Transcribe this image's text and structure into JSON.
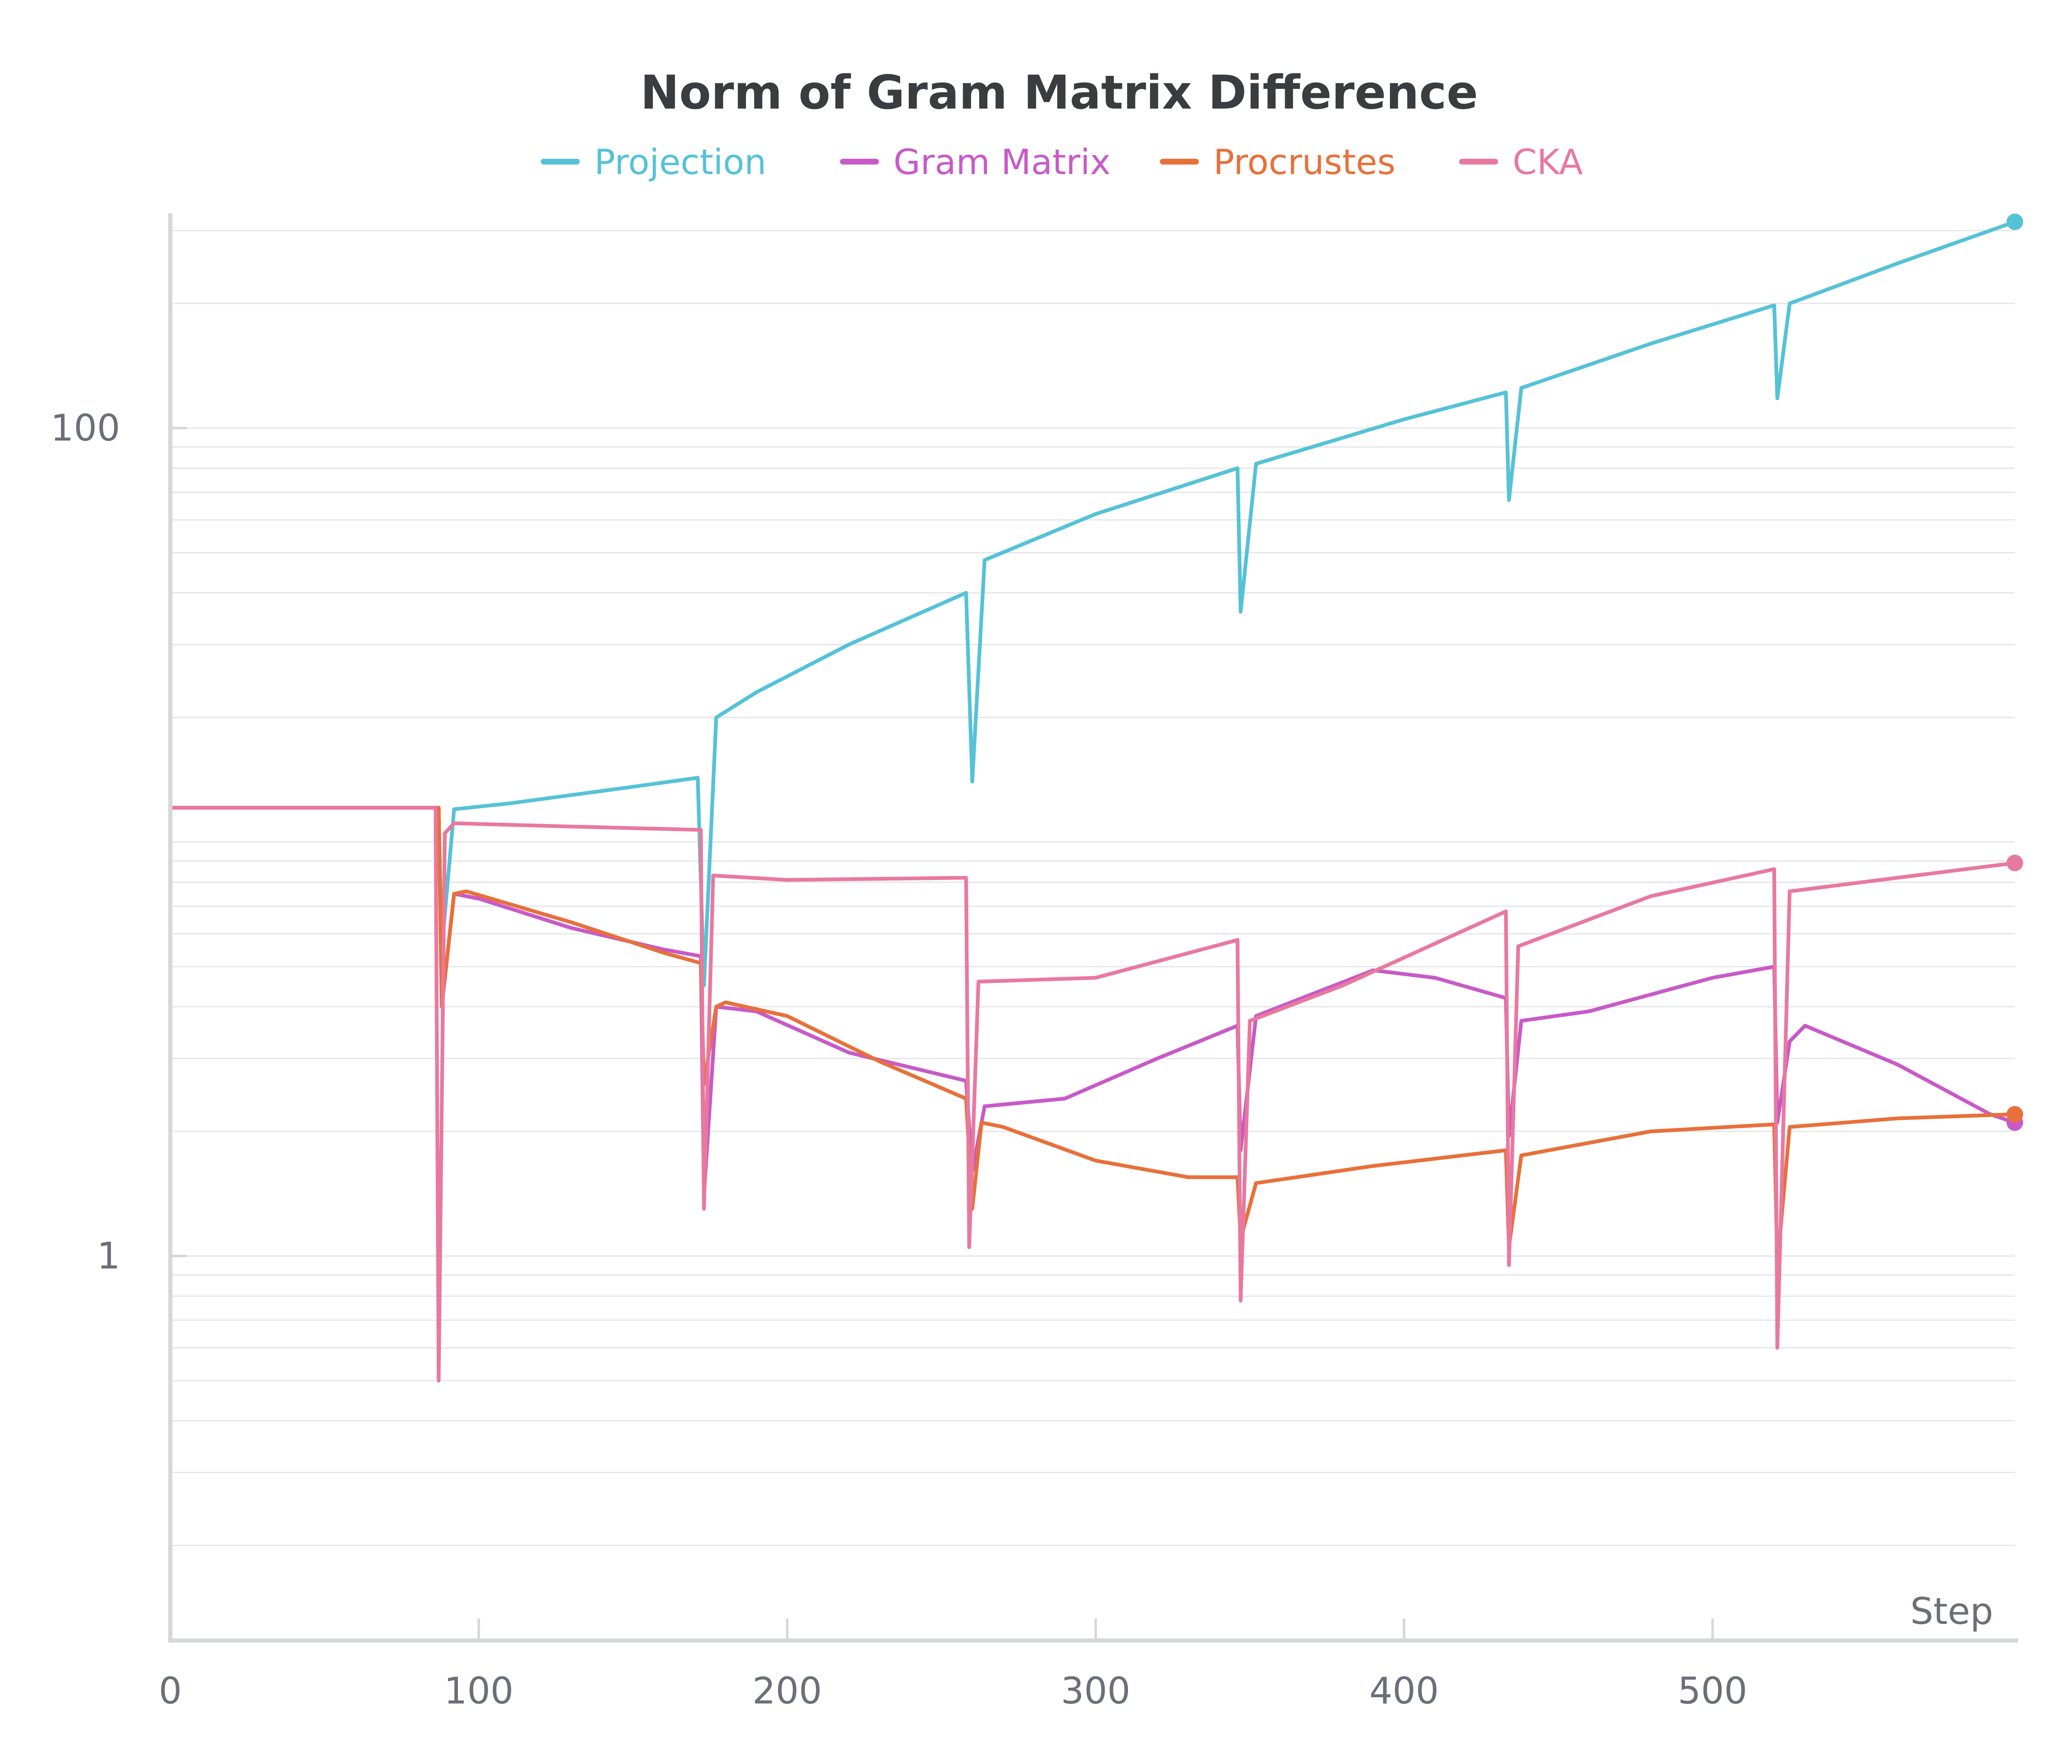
{
  "chart_data": {
    "type": "line",
    "title": "Norm of Gram Matrix Difference",
    "xlabel": "Step",
    "ylabel": "",
    "yscale": "log",
    "xlim": [
      0,
      598
    ],
    "ylim": [
      0.12,
      330
    ],
    "x_ticks": [
      0,
      100,
      200,
      300,
      400,
      500
    ],
    "x_tick_labels": [
      "0",
      "100",
      "200",
      "300",
      "400",
      "500"
    ],
    "y_ticks": [
      1,
      100
    ],
    "y_tick_labels": [
      "1",
      "100"
    ],
    "legend_position": "top-center",
    "series": [
      {
        "name": "Projection",
        "color": "#55c2d6",
        "points": [
          [
            0,
            12.1
          ],
          [
            87,
            12.1
          ],
          [
            88,
            5.5
          ],
          [
            92,
            12.0
          ],
          [
            110,
            12.4
          ],
          [
            150,
            13.6
          ],
          [
            171,
            14.3
          ],
          [
            173,
            4.5
          ],
          [
            177,
            20.0
          ],
          [
            190,
            23.0
          ],
          [
            220,
            30.0
          ],
          [
            258,
            40.0
          ],
          [
            260,
            14.0
          ],
          [
            264,
            48.0
          ],
          [
            300,
            62.0
          ],
          [
            346,
            80.0
          ],
          [
            347,
            36.0
          ],
          [
            352,
            82.0
          ],
          [
            400,
            105.0
          ],
          [
            433,
            122.0
          ],
          [
            434,
            67.0
          ],
          [
            438,
            125.0
          ],
          [
            480,
            160.0
          ],
          [
            520,
            198.0
          ],
          [
            521,
            118.0
          ],
          [
            525,
            200.0
          ],
          [
            560,
            250.0
          ],
          [
            598,
            315.0
          ]
        ]
      },
      {
        "name": "Gram Matrix",
        "color": "#c85ac8",
        "points": [
          [
            0,
            12.1
          ],
          [
            87,
            12.1
          ],
          [
            88,
            4.0
          ],
          [
            92,
            7.5
          ],
          [
            100,
            7.3
          ],
          [
            130,
            6.2
          ],
          [
            160,
            5.5
          ],
          [
            172,
            5.3
          ],
          [
            173,
            1.4
          ],
          [
            177,
            4.0
          ],
          [
            190,
            3.9
          ],
          [
            220,
            3.1
          ],
          [
            258,
            2.65
          ],
          [
            260,
            1.6
          ],
          [
            264,
            2.3
          ],
          [
            290,
            2.4
          ],
          [
            320,
            3.0
          ],
          [
            346,
            3.6
          ],
          [
            347,
            1.8
          ],
          [
            352,
            3.8
          ],
          [
            390,
            4.9
          ],
          [
            410,
            4.7
          ],
          [
            433,
            4.2
          ],
          [
            434,
            1.95
          ],
          [
            438,
            3.7
          ],
          [
            460,
            3.9
          ],
          [
            500,
            4.7
          ],
          [
            520,
            5.0
          ],
          [
            521,
            2.1
          ],
          [
            525,
            3.3
          ],
          [
            530,
            3.6
          ],
          [
            560,
            2.9
          ],
          [
            590,
            2.2
          ],
          [
            598,
            2.1
          ]
        ]
      },
      {
        "name": "Procrustes",
        "color": "#e8703a",
        "points": [
          [
            0,
            12.1
          ],
          [
            87,
            12.1
          ],
          [
            88,
            4.0
          ],
          [
            92,
            7.5
          ],
          [
            96,
            7.6
          ],
          [
            130,
            6.4
          ],
          [
            160,
            5.4
          ],
          [
            172,
            5.1
          ],
          [
            173,
            2.6
          ],
          [
            177,
            4.0
          ],
          [
            180,
            4.1
          ],
          [
            200,
            3.8
          ],
          [
            230,
            2.95
          ],
          [
            258,
            2.4
          ],
          [
            260,
            1.3
          ],
          [
            263,
            2.1
          ],
          [
            270,
            2.05
          ],
          [
            300,
            1.7
          ],
          [
            330,
            1.55
          ],
          [
            346,
            1.55
          ],
          [
            347,
            1.1
          ],
          [
            352,
            1.5
          ],
          [
            390,
            1.65
          ],
          [
            433,
            1.8
          ],
          [
            434,
            1.05
          ],
          [
            438,
            1.75
          ],
          [
            480,
            2.0
          ],
          [
            520,
            2.08
          ],
          [
            521,
            0.95
          ],
          [
            525,
            2.05
          ],
          [
            560,
            2.15
          ],
          [
            598,
            2.2
          ]
        ]
      },
      {
        "name": "CKA",
        "color": "#e8799e",
        "points": [
          [
            0,
            12.1
          ],
          [
            86,
            12.1
          ],
          [
            87,
            0.5
          ],
          [
            89,
            10.5
          ],
          [
            92,
            11.1
          ],
          [
            130,
            10.9
          ],
          [
            172,
            10.7
          ],
          [
            173,
            1.3
          ],
          [
            176,
            8.3
          ],
          [
            200,
            8.1
          ],
          [
            258,
            8.2
          ],
          [
            259,
            1.05
          ],
          [
            262,
            4.6
          ],
          [
            300,
            4.7
          ],
          [
            346,
            5.8
          ],
          [
            347,
            0.78
          ],
          [
            350,
            3.7
          ],
          [
            380,
            4.5
          ],
          [
            433,
            6.8
          ],
          [
            434,
            0.95
          ],
          [
            437,
            5.6
          ],
          [
            480,
            7.4
          ],
          [
            520,
            8.6
          ],
          [
            521,
            0.6
          ],
          [
            525,
            7.6
          ],
          [
            560,
            8.2
          ],
          [
            598,
            8.9
          ]
        ]
      }
    ]
  }
}
